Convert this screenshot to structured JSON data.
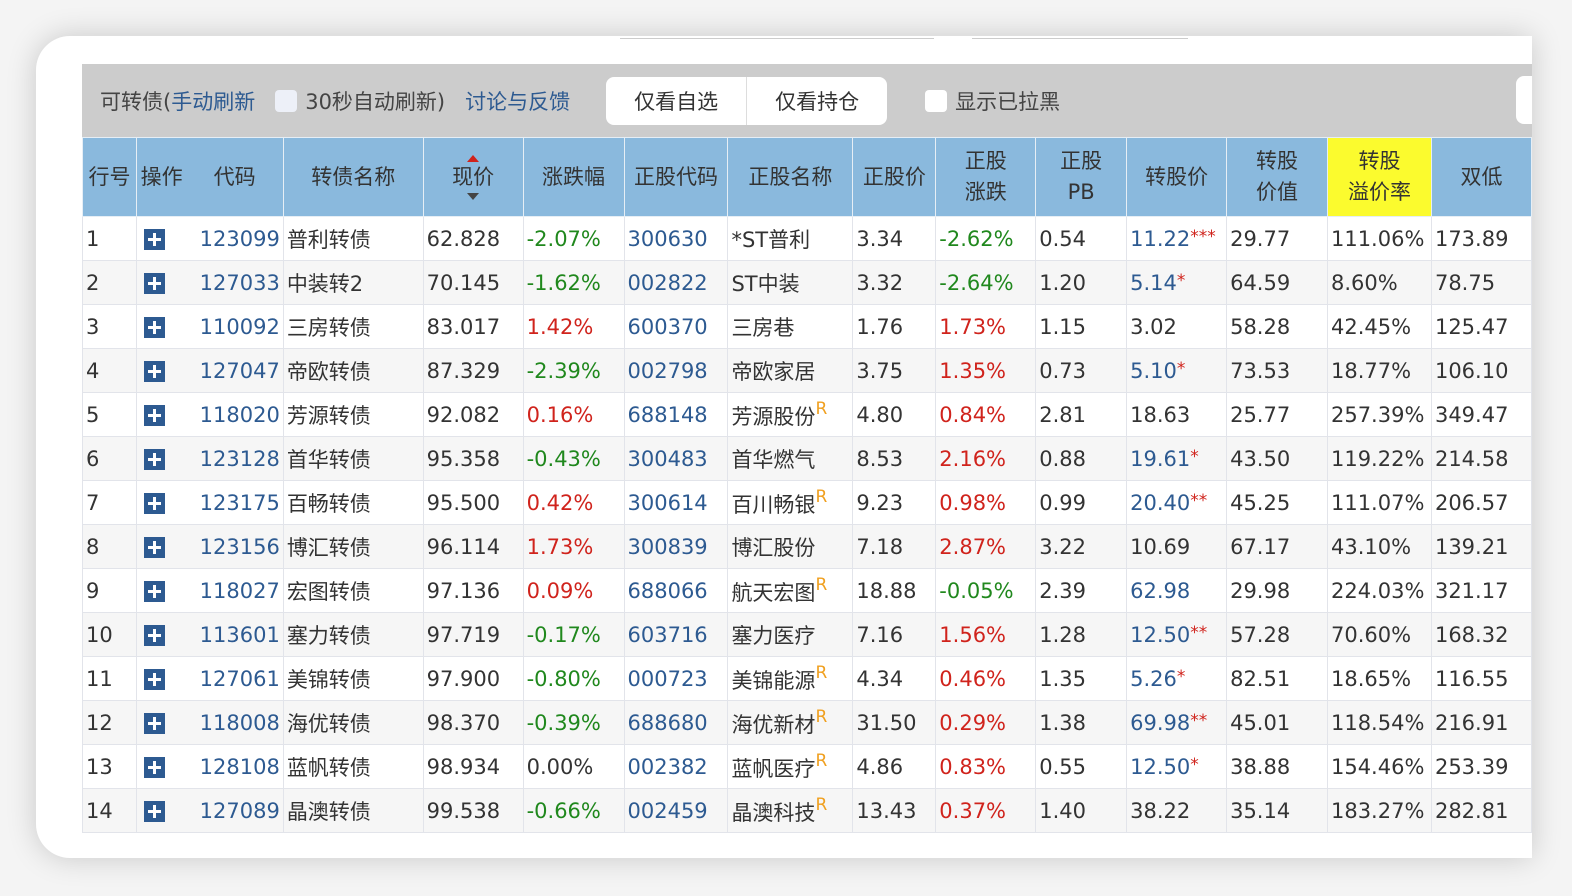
{
  "toolbar": {
    "prefix": "可转债(",
    "manual_refresh": "手动刷新",
    "auto_refresh": "30秒自动刷新)",
    "feedback": "讨论与反馈",
    "watchlist_btn": "仅看自选",
    "holdings_btn": "仅看持仓",
    "show_blacklisted": "显示已拉黑"
  },
  "headers": [
    "行号",
    "操作",
    "代码",
    "转债名称",
    "现价",
    "涨跌幅",
    "正股代码",
    "正股名称",
    "正股价",
    "正股\n涨跌",
    "正股\nPB",
    "转股价",
    "转股\n价值",
    "转股\n溢价率",
    "双低"
  ],
  "colors": {
    "header": "#8ab9dd",
    "highlight": "#fbfb2e",
    "up": "#d0231c",
    "down": "#20881d",
    "link": "#2d5a91"
  },
  "rows": [
    {
      "n": "1",
      "code": "123099",
      "name": "普利转债",
      "price": "62.828",
      "chg": "-2.07%",
      "scode": "300630",
      "sname": "*ST普利",
      "r": "",
      "sprice": "3.34",
      "schg": "-2.62%",
      "pb": "0.54",
      "cp": "11.22",
      "cpstar": "***",
      "cpblue": true,
      "cv": "29.77",
      "prem": "111.06%",
      "dl": "173.89"
    },
    {
      "n": "2",
      "code": "127033",
      "name": "中装转2",
      "price": "70.145",
      "chg": "-1.62%",
      "scode": "002822",
      "sname": "ST中装",
      "r": "",
      "sprice": "3.32",
      "schg": "-2.64%",
      "pb": "1.20",
      "cp": "5.14",
      "cpstar": "*",
      "cpblue": true,
      "cv": "64.59",
      "prem": "8.60%",
      "dl": "78.75"
    },
    {
      "n": "3",
      "code": "110092",
      "name": "三房转债",
      "price": "83.017",
      "chg": "1.42%",
      "scode": "600370",
      "sname": "三房巷",
      "r": "",
      "sprice": "1.76",
      "schg": "1.73%",
      "pb": "1.15",
      "cp": "3.02",
      "cpstar": "",
      "cpblue": false,
      "cv": "58.28",
      "prem": "42.45%",
      "dl": "125.47"
    },
    {
      "n": "4",
      "code": "127047",
      "name": "帝欧转债",
      "price": "87.329",
      "chg": "-2.39%",
      "scode": "002798",
      "sname": "帝欧家居",
      "r": "",
      "sprice": "3.75",
      "schg": "1.35%",
      "pb": "0.73",
      "cp": "5.10",
      "cpstar": "*",
      "cpblue": true,
      "cv": "73.53",
      "prem": "18.77%",
      "dl": "106.10"
    },
    {
      "n": "5",
      "code": "118020",
      "name": "芳源转债",
      "price": "92.082",
      "chg": "0.16%",
      "scode": "688148",
      "sname": "芳源股份",
      "r": "R",
      "sprice": "4.80",
      "schg": "0.84%",
      "pb": "2.81",
      "cp": "18.63",
      "cpstar": "",
      "cpblue": false,
      "cv": "25.77",
      "prem": "257.39%",
      "dl": "349.47"
    },
    {
      "n": "6",
      "code": "123128",
      "name": "首华转债",
      "price": "95.358",
      "chg": "-0.43%",
      "scode": "300483",
      "sname": "首华燃气",
      "r": "",
      "sprice": "8.53",
      "schg": "2.16%",
      "pb": "0.88",
      "cp": "19.61",
      "cpstar": "*",
      "cpblue": true,
      "cv": "43.50",
      "prem": "119.22%",
      "dl": "214.58"
    },
    {
      "n": "7",
      "code": "123175",
      "name": "百畅转债",
      "price": "95.500",
      "chg": "0.42%",
      "scode": "300614",
      "sname": "百川畅银",
      "r": "R",
      "sprice": "9.23",
      "schg": "0.98%",
      "pb": "0.99",
      "cp": "20.40",
      "cpstar": "**",
      "cpblue": true,
      "cv": "45.25",
      "prem": "111.07%",
      "dl": "206.57"
    },
    {
      "n": "8",
      "code": "123156",
      "name": "博汇转债",
      "price": "96.114",
      "chg": "1.73%",
      "scode": "300839",
      "sname": "博汇股份",
      "r": "",
      "sprice": "7.18",
      "schg": "2.87%",
      "pb": "3.22",
      "cp": "10.69",
      "cpstar": "",
      "cpblue": false,
      "cv": "67.17",
      "prem": "43.10%",
      "dl": "139.21"
    },
    {
      "n": "9",
      "code": "118027",
      "name": "宏图转债",
      "price": "97.136",
      "chg": "0.09%",
      "scode": "688066",
      "sname": "航天宏图",
      "r": "R",
      "sprice": "18.88",
      "schg": "-0.05%",
      "pb": "2.39",
      "cp": "62.98",
      "cpstar": "",
      "cpblue": true,
      "cv": "29.98",
      "prem": "224.03%",
      "dl": "321.17"
    },
    {
      "n": "10",
      "code": "113601",
      "name": "塞力转债",
      "price": "97.719",
      "chg": "-0.17%",
      "scode": "603716",
      "sname": "塞力医疗",
      "r": "",
      "sprice": "7.16",
      "schg": "1.56%",
      "pb": "1.28",
      "cp": "12.50",
      "cpstar": "**",
      "cpblue": true,
      "cv": "57.28",
      "prem": "70.60%",
      "dl": "168.32"
    },
    {
      "n": "11",
      "code": "127061",
      "name": "美锦转债",
      "price": "97.900",
      "chg": "-0.80%",
      "scode": "000723",
      "sname": "美锦能源",
      "r": "R",
      "sprice": "4.34",
      "schg": "0.46%",
      "pb": "1.35",
      "cp": "5.26",
      "cpstar": "*",
      "cpblue": true,
      "cv": "82.51",
      "prem": "18.65%",
      "dl": "116.55"
    },
    {
      "n": "12",
      "code": "118008",
      "name": "海优转债",
      "price": "98.370",
      "chg": "-0.39%",
      "scode": "688680",
      "sname": "海优新材",
      "r": "R",
      "sprice": "31.50",
      "schg": "0.29%",
      "pb": "1.38",
      "cp": "69.98",
      "cpstar": "**",
      "cpblue": true,
      "cv": "45.01",
      "prem": "118.54%",
      "dl": "216.91"
    },
    {
      "n": "13",
      "code": "128108",
      "name": "蓝帆转债",
      "price": "98.934",
      "chg": "0.00%",
      "scode": "002382",
      "sname": "蓝帆医疗",
      "r": "R",
      "sprice": "4.86",
      "schg": "0.83%",
      "pb": "0.55",
      "cp": "12.50",
      "cpstar": "*",
      "cpblue": true,
      "cv": "38.88",
      "prem": "154.46%",
      "dl": "253.39"
    },
    {
      "n": "14",
      "code": "127089",
      "name": "晶澳转债",
      "price": "99.538",
      "chg": "-0.66%",
      "scode": "002459",
      "sname": "晶澳科技",
      "r": "R",
      "sprice": "13.43",
      "schg": "0.37%",
      "pb": "1.40",
      "cp": "38.22",
      "cpstar": "",
      "cpblue": false,
      "cv": "35.14",
      "prem": "183.27%",
      "dl": "282.81"
    }
  ]
}
